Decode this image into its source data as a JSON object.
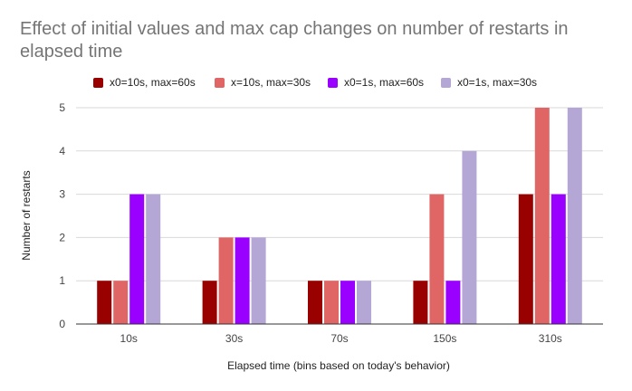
{
  "chart_data": {
    "type": "bar",
    "title": "Effect of initial values and max cap changes on number of restarts in elapsed time",
    "xlabel": "Elapsed time (bins based on today's behavior)",
    "ylabel": "Number of restarts",
    "categories": [
      "10s",
      "30s",
      "70s",
      "150s",
      "310s"
    ],
    "ylim": [
      0,
      5
    ],
    "yticks": [
      0,
      1,
      2,
      3,
      4,
      5
    ],
    "grid": true,
    "legend_position": "top",
    "series": [
      {
        "name": "x0=10s, max=60s",
        "color": "#990000",
        "values": [
          1,
          1,
          1,
          1,
          3
        ]
      },
      {
        "name": "x=10s, max=30s",
        "color": "#e06666",
        "values": [
          1,
          2,
          1,
          3,
          5
        ]
      },
      {
        "name": "x0=1s, max=60s",
        "color": "#9900ff",
        "values": [
          3,
          2,
          1,
          1,
          3
        ]
      },
      {
        "name": "x0=1s, max=30s",
        "color": "#b4a7d6",
        "values": [
          3,
          2,
          1,
          4,
          5
        ]
      }
    ]
  }
}
